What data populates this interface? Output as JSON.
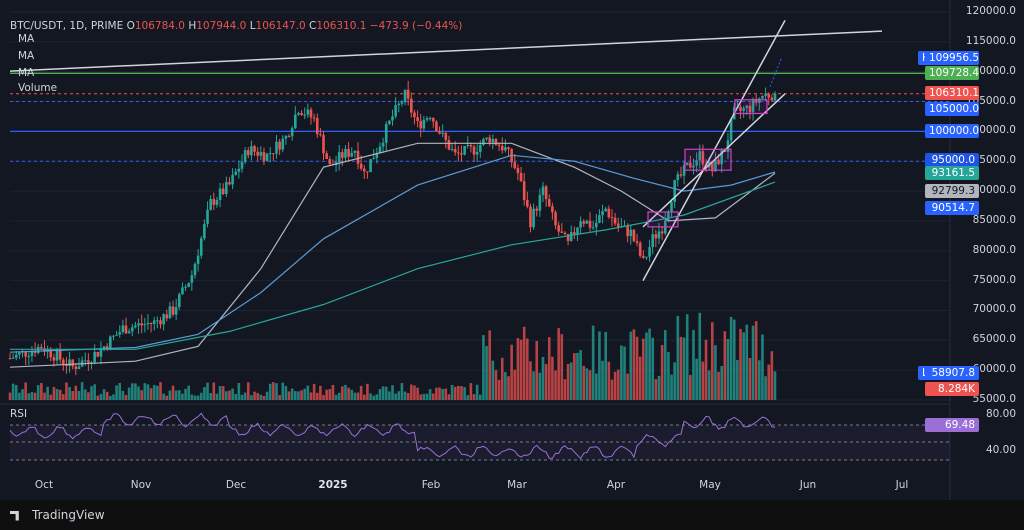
{
  "header": {
    "symbol": "BTC/USDT, 1D, PRIME",
    "open_label": "O",
    "open": "106784.0",
    "high_label": "H",
    "high": "107944.0",
    "low_label": "L",
    "low": "106147.0",
    "close_label": "C",
    "close": "106310.1",
    "change": "−473.9 (−0.44%)",
    "indicators": [
      "MA",
      "MA",
      "MA",
      "Volume"
    ]
  },
  "rsi_label": "RSI",
  "brand": "TradingView",
  "colors": {
    "up": "#26a69a",
    "down": "#ef5350",
    "bg": "#131722",
    "blue_line": "#2962ff",
    "green_line": "#4caf50",
    "rsi": "#9c6fd6"
  },
  "chart_data": {
    "type": "candlestick",
    "xlabels": [
      "Oct",
      "Nov",
      "Dec",
      "2025",
      "Feb",
      "Mar",
      "Apr",
      "May",
      "Jun",
      "Jul"
    ],
    "ylabels": [
      "120000.0",
      "115000.0",
      "110000.0",
      "105000.0",
      "100000.0",
      "95000.0",
      "90000.0",
      "85000.0",
      "80000.0",
      "75000.0",
      "70000.0",
      "65000.0",
      "60000.0",
      "55000.0"
    ],
    "ylim": [
      55000,
      120000
    ],
    "rsi_labels": [
      "80.00",
      "40.00"
    ],
    "price_tags": [
      {
        "name": "High",
        "value": "109956.5",
        "color": "#2962ff"
      },
      {
        "value": "109728.4",
        "color": "#4caf50"
      },
      {
        "value": "106310.1",
        "color": "#ef5350"
      },
      {
        "value": "105000.0",
        "color": "#2962ff"
      },
      {
        "value": "100000.0",
        "color": "#2962ff"
      },
      {
        "value": "95000.0",
        "color": "#1e53e5"
      },
      {
        "value": "93161.5",
        "color": "#26a69a"
      },
      {
        "value": "92799.3",
        "color": "#b2b5be"
      },
      {
        "value": "90514.7",
        "color": "#2962ff"
      },
      {
        "name": "Low",
        "value": "58907.8",
        "color": "#2962ff"
      },
      {
        "value": "8.284K",
        "color": "#ef5350"
      },
      {
        "value": "69.48",
        "color": "#9c6fd6"
      }
    ],
    "anchors": [
      [
        0,
        62000
      ],
      [
        10,
        64000
      ],
      [
        20,
        60500
      ],
      [
        28,
        63000
      ],
      [
        36,
        67000
      ],
      [
        46,
        68000
      ],
      [
        52,
        70000
      ],
      [
        58,
        76000
      ],
      [
        64,
        88000
      ],
      [
        70,
        91000
      ],
      [
        76,
        97000
      ],
      [
        82,
        96000
      ],
      [
        88,
        99000
      ],
      [
        92,
        104000
      ],
      [
        97,
        102000
      ],
      [
        102,
        94000
      ],
      [
        106,
        96000
      ],
      [
        110,
        97000
      ],
      [
        113,
        93000
      ],
      [
        118,
        98000
      ],
      [
        122,
        102500
      ],
      [
        126,
        106000
      ],
      [
        130,
        101000
      ],
      [
        134,
        103000
      ],
      [
        138,
        99000
      ],
      [
        142,
        96000
      ],
      [
        148,
        97000
      ],
      [
        153,
        99000
      ],
      [
        158,
        97000
      ],
      [
        162,
        93000
      ],
      [
        166,
        85000
      ],
      [
        170,
        90000
      ],
      [
        174,
        84000
      ],
      [
        178,
        81000
      ],
      [
        182,
        85500
      ],
      [
        186,
        84000
      ],
      [
        190,
        87000
      ],
      [
        194,
        84000
      ],
      [
        198,
        83000
      ],
      [
        202,
        78000
      ],
      [
        205,
        82000
      ],
      [
        208,
        84000
      ],
      [
        212,
        91000
      ],
      [
        216,
        94000
      ],
      [
        220,
        96000
      ],
      [
        224,
        93500
      ],
      [
        228,
        97000
      ],
      [
        231,
        103000
      ],
      [
        236,
        104000
      ],
      [
        240,
        106000
      ],
      [
        244,
        106310
      ]
    ],
    "lines": [
      {
        "name": "MA",
        "values": [
          [
            0,
            60500
          ],
          [
            40,
            61500
          ],
          [
            60,
            64000
          ],
          [
            80,
            77000
          ],
          [
            100,
            94000
          ],
          [
            130,
            98000
          ],
          [
            160,
            98000
          ],
          [
            180,
            94000
          ],
          [
            195,
            90000
          ],
          [
            210,
            85000
          ],
          [
            225,
            85500
          ],
          [
            244,
            93000
          ]
        ]
      },
      {
        "name": "MA",
        "values": [
          [
            0,
            63000
          ],
          [
            40,
            63800
          ],
          [
            60,
            66000
          ],
          [
            80,
            73000
          ],
          [
            100,
            82000
          ],
          [
            130,
            91000
          ],
          [
            160,
            96000
          ],
          [
            180,
            95000
          ],
          [
            200,
            92000
          ],
          [
            215,
            90000
          ],
          [
            230,
            91000
          ],
          [
            244,
            93200
          ]
        ]
      },
      {
        "name": "MA",
        "values": [
          [
            0,
            63500
          ],
          [
            40,
            63500
          ],
          [
            70,
            66500
          ],
          [
            100,
            71000
          ],
          [
            130,
            77000
          ],
          [
            160,
            81000
          ],
          [
            190,
            83500
          ],
          [
            215,
            86000
          ],
          [
            244,
            91500
          ]
        ]
      }
    ]
  }
}
